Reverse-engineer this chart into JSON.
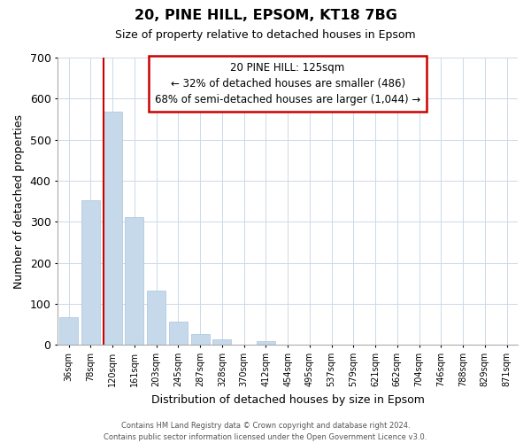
{
  "title": "20, PINE HILL, EPSOM, KT18 7BG",
  "subtitle": "Size of property relative to detached houses in Epsom",
  "xlabel": "Distribution of detached houses by size in Epsom",
  "ylabel": "Number of detached properties",
  "categories": [
    "36sqm",
    "78sqm",
    "120sqm",
    "161sqm",
    "203sqm",
    "245sqm",
    "287sqm",
    "328sqm",
    "370sqm",
    "412sqm",
    "454sqm",
    "495sqm",
    "537sqm",
    "579sqm",
    "621sqm",
    "662sqm",
    "704sqm",
    "746sqm",
    "788sqm",
    "829sqm",
    "871sqm"
  ],
  "values": [
    68,
    353,
    568,
    312,
    132,
    57,
    27,
    14,
    0,
    10,
    0,
    0,
    0,
    0,
    0,
    0,
    0,
    0,
    0,
    0,
    0
  ],
  "bar_color": "#c5d9ea",
  "vline_color": "#cc0000",
  "vline_bar_index": 2,
  "ylim": [
    0,
    700
  ],
  "yticks": [
    0,
    100,
    200,
    300,
    400,
    500,
    600,
    700
  ],
  "annotation_title": "20 PINE HILL: 125sqm",
  "annotation_line1": "← 32% of detached houses are smaller (486)",
  "annotation_line2": "68% of semi-detached houses are larger (1,044) →",
  "annotation_box_color": "#ffffff",
  "annotation_box_edge": "#cc0000",
  "footer_line1": "Contains HM Land Registry data © Crown copyright and database right 2024.",
  "footer_line2": "Contains public sector information licensed under the Open Government Licence v3.0.",
  "background_color": "#ffffff",
  "grid_color": "#ccd9e8"
}
